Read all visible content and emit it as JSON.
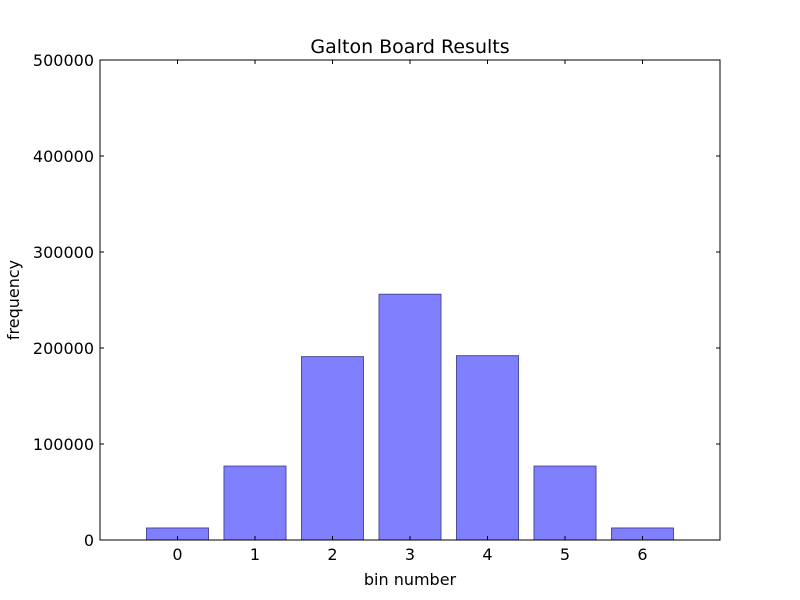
{
  "chart_data": {
    "type": "bar",
    "title": "Galton Board Results",
    "xlabel": "bin number",
    "ylabel": "frequency",
    "categories": [
      "0",
      "1",
      "2",
      "3",
      "4",
      "5",
      "6"
    ],
    "x": [
      0,
      1,
      2,
      3,
      4,
      5,
      6
    ],
    "values": [
      12500,
      77000,
      191000,
      256000,
      192000,
      77000,
      12500
    ],
    "xlim": [
      -1,
      7
    ],
    "ylim": [
      0,
      500000
    ],
    "yticks": [
      0,
      100000,
      200000,
      300000,
      400000,
      500000
    ],
    "ytick_labels": [
      "0",
      "100000",
      "200000",
      "300000",
      "400000",
      "500000"
    ],
    "bar_color": "#8080ff",
    "bar_edge_color": "#4d4d99",
    "grid": false,
    "legend": "none"
  }
}
